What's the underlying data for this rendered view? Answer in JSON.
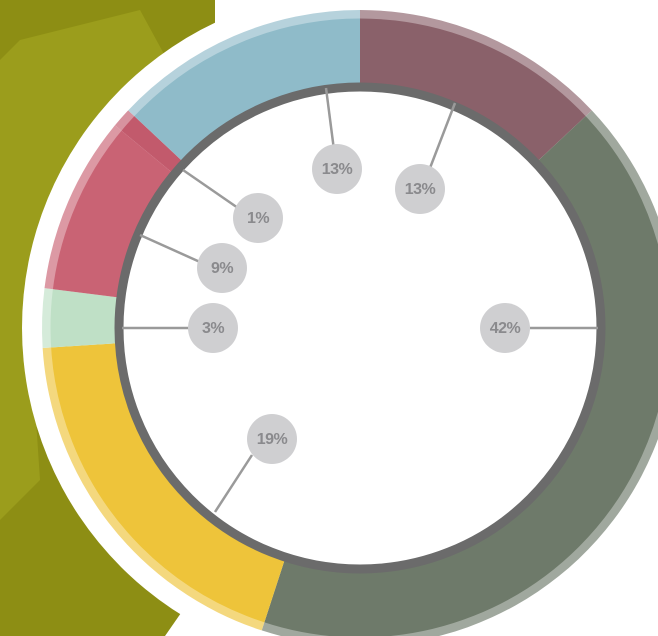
{
  "chart_data": {
    "type": "donut",
    "values": [
      13,
      42,
      19,
      3,
      9,
      1,
      13
    ],
    "value_labels": [
      "13%",
      "42%",
      "19%",
      "3%",
      "9%",
      "1%",
      "13%"
    ],
    "colors": [
      "#8a616a",
      "#6e7a6a",
      "#eec43a",
      "#bfe0c6",
      "#c96374",
      "#c25a6c",
      "#8fbbc9"
    ]
  }
}
